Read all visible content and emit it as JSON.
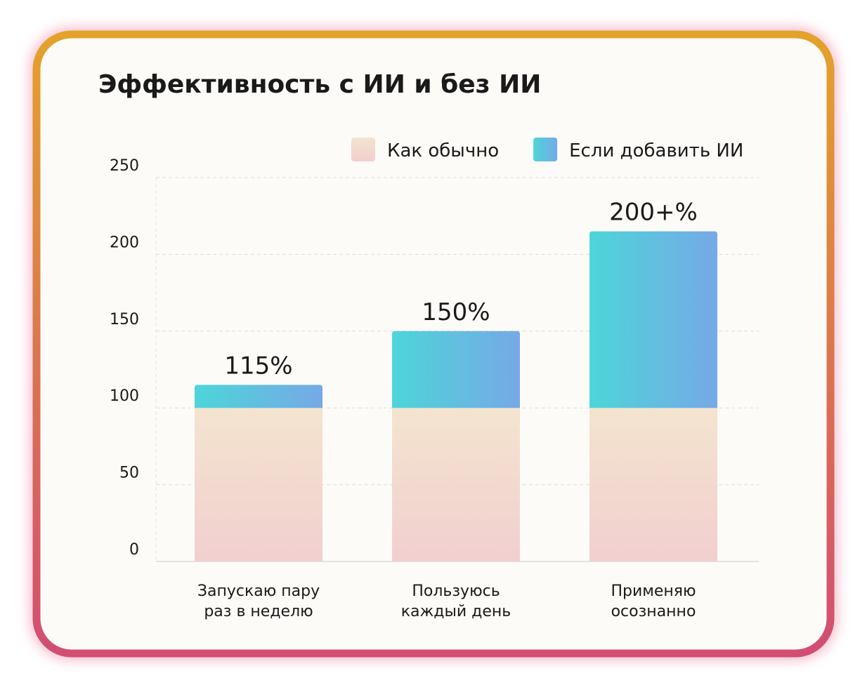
{
  "chart_data": {
    "type": "stacked_bar",
    "title": "Эффективность с ИИ и без ИИ",
    "categories": [
      [
        "Запускаю пару",
        "раз в неделю"
      ],
      [
        "Пользуюсь",
        "каждый день"
      ],
      [
        "Применяю",
        "осознанно"
      ]
    ],
    "series": [
      {
        "name": "Как обычно",
        "color": [
          "#f3e4cf",
          "#f2cfcf"
        ],
        "values": [
          100,
          100,
          100
        ]
      },
      {
        "name": "Если добавить ИИ",
        "color": [
          "#4dd5d9",
          "#76a9e6"
        ],
        "values": [
          15,
          50,
          115
        ]
      }
    ],
    "annotations": [
      "115%",
      "150%",
      "200+%"
    ],
    "ylim": [
      0,
      250
    ],
    "yticks": [
      0,
      50,
      100,
      150,
      200,
      250
    ],
    "grid": true,
    "legend": "top-right"
  }
}
